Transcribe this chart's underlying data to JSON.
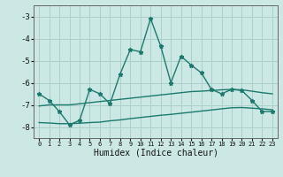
{
  "xlabel": "Humidex (Indice chaleur)",
  "x_values": [
    0,
    1,
    2,
    3,
    4,
    5,
    6,
    7,
    8,
    9,
    10,
    11,
    12,
    13,
    14,
    15,
    16,
    17,
    18,
    19,
    20,
    21,
    22,
    23
  ],
  "main_line": [
    -6.5,
    -6.8,
    -7.3,
    -7.9,
    -7.7,
    -6.3,
    -6.5,
    -6.95,
    -5.6,
    -4.5,
    -4.6,
    -3.1,
    -4.35,
    -6.0,
    -4.8,
    -5.2,
    -5.55,
    -6.3,
    -6.5,
    -6.3,
    -6.35,
    -6.8,
    -7.3,
    -7.3
  ],
  "upper_line": [
    -7.05,
    -7.0,
    -7.0,
    -7.0,
    -6.95,
    -6.9,
    -6.85,
    -6.8,
    -6.75,
    -6.7,
    -6.65,
    -6.6,
    -6.55,
    -6.5,
    -6.45,
    -6.4,
    -6.38,
    -6.35,
    -6.32,
    -6.3,
    -6.32,
    -6.38,
    -6.45,
    -6.5
  ],
  "lower_line": [
    -7.8,
    -7.82,
    -7.85,
    -7.85,
    -7.83,
    -7.8,
    -7.78,
    -7.72,
    -7.68,
    -7.62,
    -7.57,
    -7.52,
    -7.47,
    -7.43,
    -7.38,
    -7.33,
    -7.28,
    -7.23,
    -7.18,
    -7.13,
    -7.12,
    -7.15,
    -7.18,
    -7.22
  ],
  "line_color": "#1a7a6e",
  "bg_color": "#cce8e4",
  "grid_color": "#aad0cc",
  "ylim": [
    -8.5,
    -2.5
  ],
  "xlim": [
    -0.5,
    23.5
  ],
  "yticks": [
    -8,
    -7,
    -6,
    -5,
    -4,
    -3
  ],
  "xticks": [
    0,
    1,
    2,
    3,
    4,
    5,
    6,
    7,
    8,
    9,
    10,
    11,
    12,
    13,
    14,
    15,
    16,
    17,
    18,
    19,
    20,
    21,
    22,
    23
  ]
}
